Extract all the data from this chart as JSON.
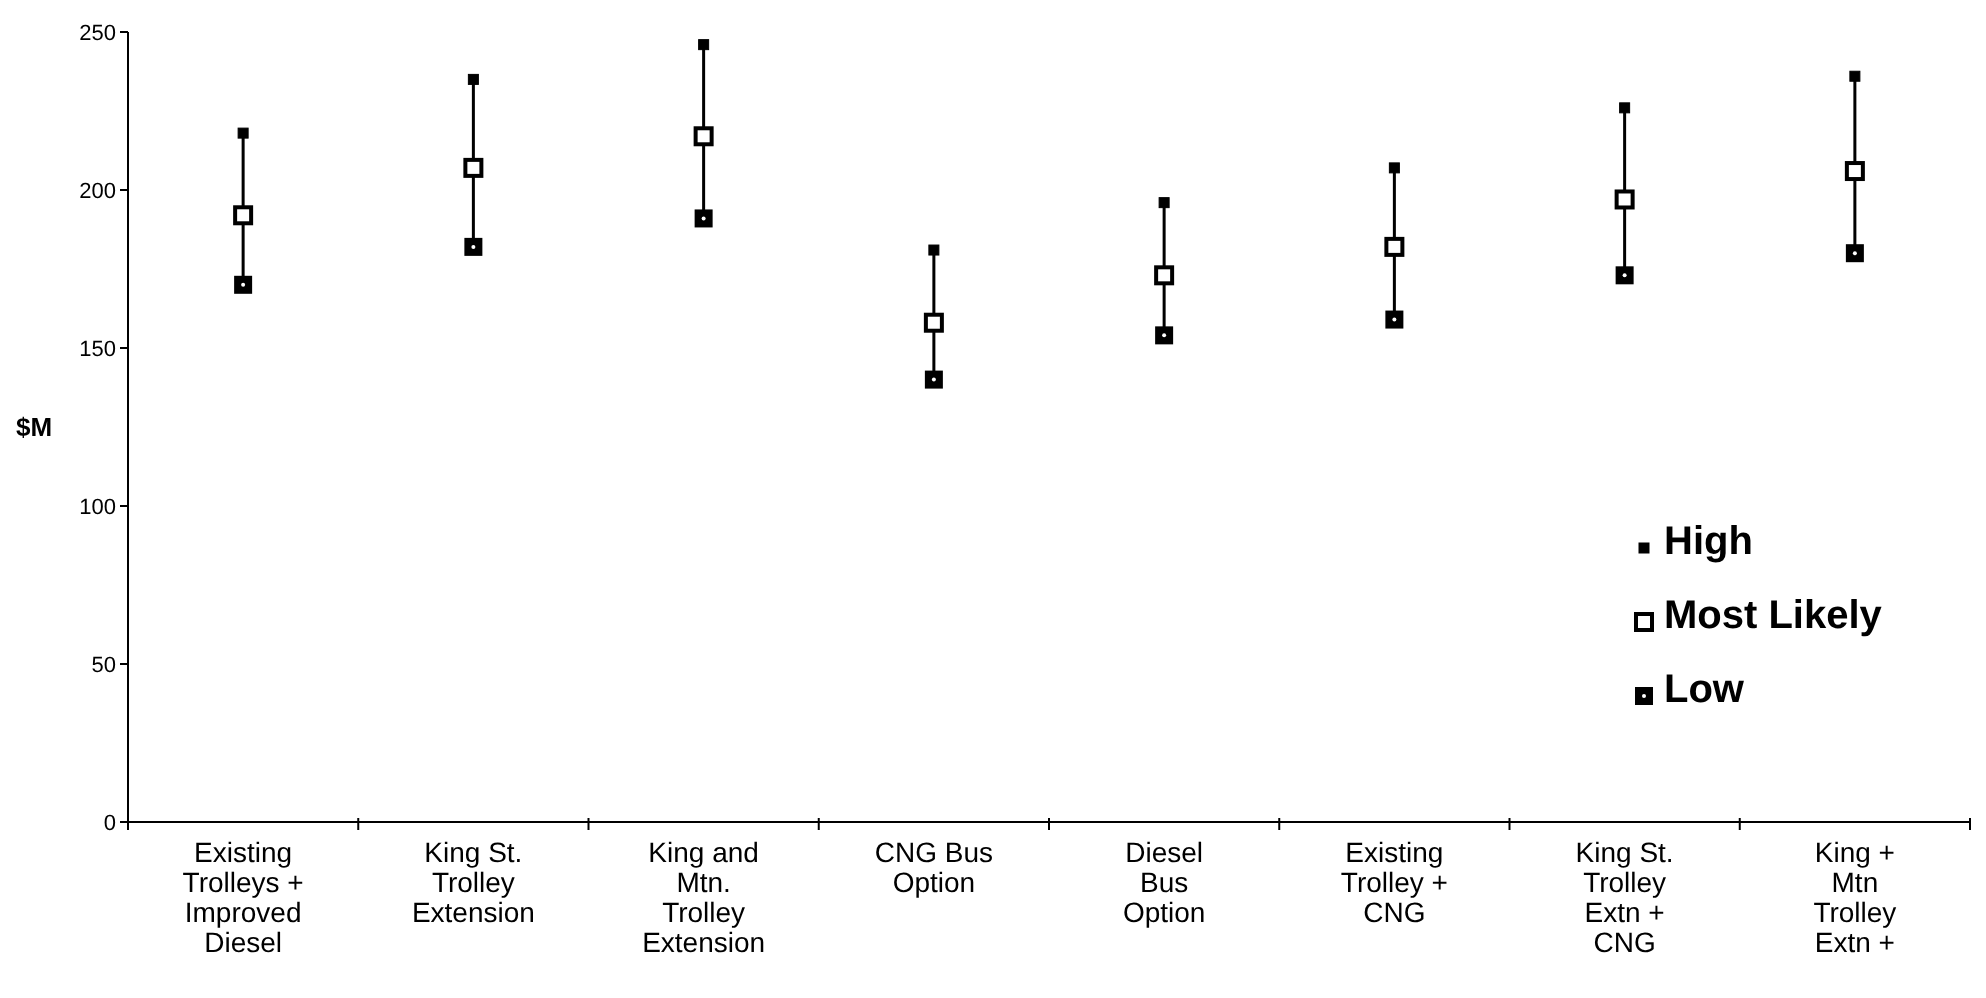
{
  "chart_data": {
    "type": "scatter",
    "ylabel": "$M",
    "categories": [
      "Existing\nTrolleys +\nImproved\nDiesel",
      "King St.\nTrolley\nExtension",
      "King and\nMtn.\nTrolley\nExtension",
      "CNG Bus\nOption",
      "Diesel\nBus\nOption",
      "Existing\nTrolley +\nCNG",
      "King St.\nTrolley\nExtn +\nCNG",
      "King +\nMtn\nTrolley\nExtn +"
    ],
    "series": [
      {
        "name": "High",
        "color": "#000000",
        "values": [
          218,
          235,
          246,
          181,
          196,
          207,
          226,
          236
        ]
      },
      {
        "name": "Most Likely",
        "color": "#000000",
        "values": [
          192,
          207,
          217,
          158,
          173,
          182,
          197,
          206
        ]
      },
      {
        "name": "Low",
        "color": "#000000",
        "values": [
          170,
          182,
          191,
          140,
          154,
          159,
          173,
          180
        ]
      }
    ],
    "ylim": [
      0,
      250
    ],
    "yticks": [
      0,
      50,
      100,
      150,
      200,
      250
    ],
    "grid": false,
    "legend": "right",
    "marker": "square"
  }
}
